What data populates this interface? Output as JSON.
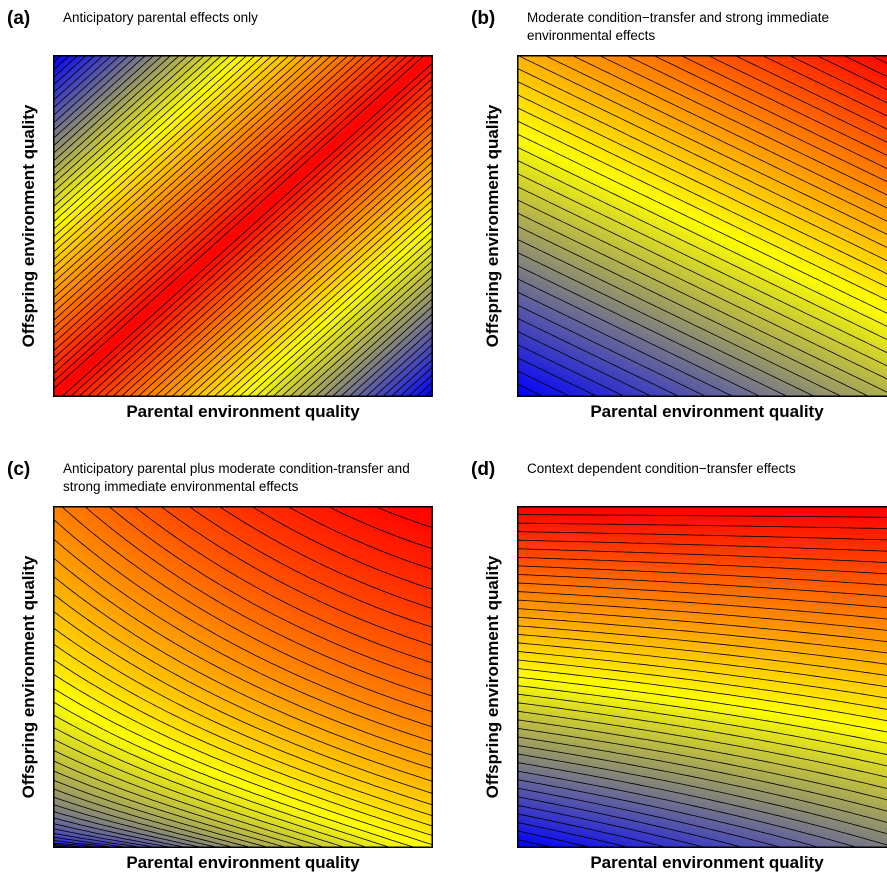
{
  "chart_data": [
    {
      "type": "heatmap",
      "panel": "(a)",
      "title": "Anticipatory parental effects only",
      "xlabel": "Parental environment quality",
      "ylabel": "Offspring environment quality",
      "surface": "anticipatory",
      "contour_levels": 45,
      "colormap": [
        "#0000ff",
        "#ffff00",
        "#ff0000"
      ],
      "grid": false
    },
    {
      "type": "heatmap",
      "panel": "(b)",
      "title": "Moderate condition−transfer and strong immediate environmental effects",
      "xlabel": "Parental environment quality",
      "ylabel": "Offspring environment quality",
      "surface": "condition_transfer",
      "contour_levels": 40,
      "colormap": [
        "#0000ff",
        "#ffff00",
        "#ff0000"
      ],
      "grid": false
    },
    {
      "type": "heatmap",
      "panel": "(c)",
      "title": "Anticipatory parental plus moderate condition-transfer and strong immediate environmental effects",
      "xlabel": "Parental environment quality",
      "ylabel": "Offspring environment quality",
      "surface": "combined",
      "contour_levels": 45,
      "colormap": [
        "#0000ff",
        "#ffff00",
        "#ff0000"
      ],
      "grid": false
    },
    {
      "type": "heatmap",
      "panel": "(d)",
      "title": "Context dependent condition−transfer effects",
      "xlabel": "Parental environment quality",
      "ylabel": "Offspring environment quality",
      "surface": "context_dependent",
      "contour_levels": 40,
      "colormap": [
        "#0000ff",
        "#ffff00",
        "#ff0000"
      ],
      "grid": false
    }
  ]
}
